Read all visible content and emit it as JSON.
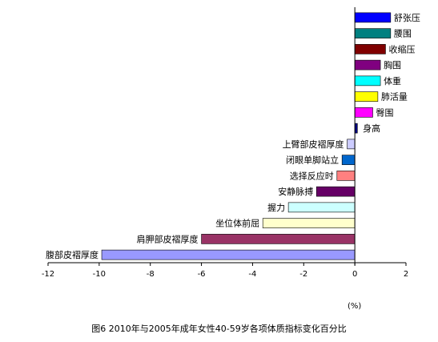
{
  "chart_data": {
    "type": "bar",
    "orientation": "horizontal",
    "categories": [
      "舒张压",
      "腰围",
      "收缩压",
      "胸围",
      "体重",
      "肺活量",
      "臀围",
      "身高",
      "上臂部皮褶厚度",
      "闭眼单脚站立",
      "选择反应时",
      "安静脉搏",
      "握力",
      "坐位体前屈",
      "肩胛部皮褶厚度",
      "腹部皮褶厚度"
    ],
    "values": [
      1.4,
      1.4,
      1.2,
      1.0,
      1.0,
      0.9,
      0.7,
      0.1,
      -0.3,
      -0.5,
      -0.7,
      -1.5,
      -2.6,
      -3.6,
      -6.0,
      -9.9
    ],
    "colors": [
      "#0000ff",
      "#008080",
      "#800000",
      "#800080",
      "#00ffff",
      "#ffff00",
      "#ff00ff",
      "#000080",
      "#ccccff",
      "#0066cc",
      "#ff8080",
      "#660066",
      "#ccffff",
      "#ffffcc",
      "#993366",
      "#9999ff"
    ],
    "xlim": [
      -12,
      2
    ],
    "xticks": [
      "-12",
      "-10",
      "-8",
      "-6",
      "-4",
      "-2",
      "0",
      "2"
    ],
    "xtick_values": [
      -12,
      -10,
      -8,
      -6,
      -4,
      -2,
      0,
      2
    ],
    "unit_label": "(%)",
    "title": "图6    2010年与2005年成年女性40-59岁各项体质指标变化百分比",
    "grid": false
  }
}
